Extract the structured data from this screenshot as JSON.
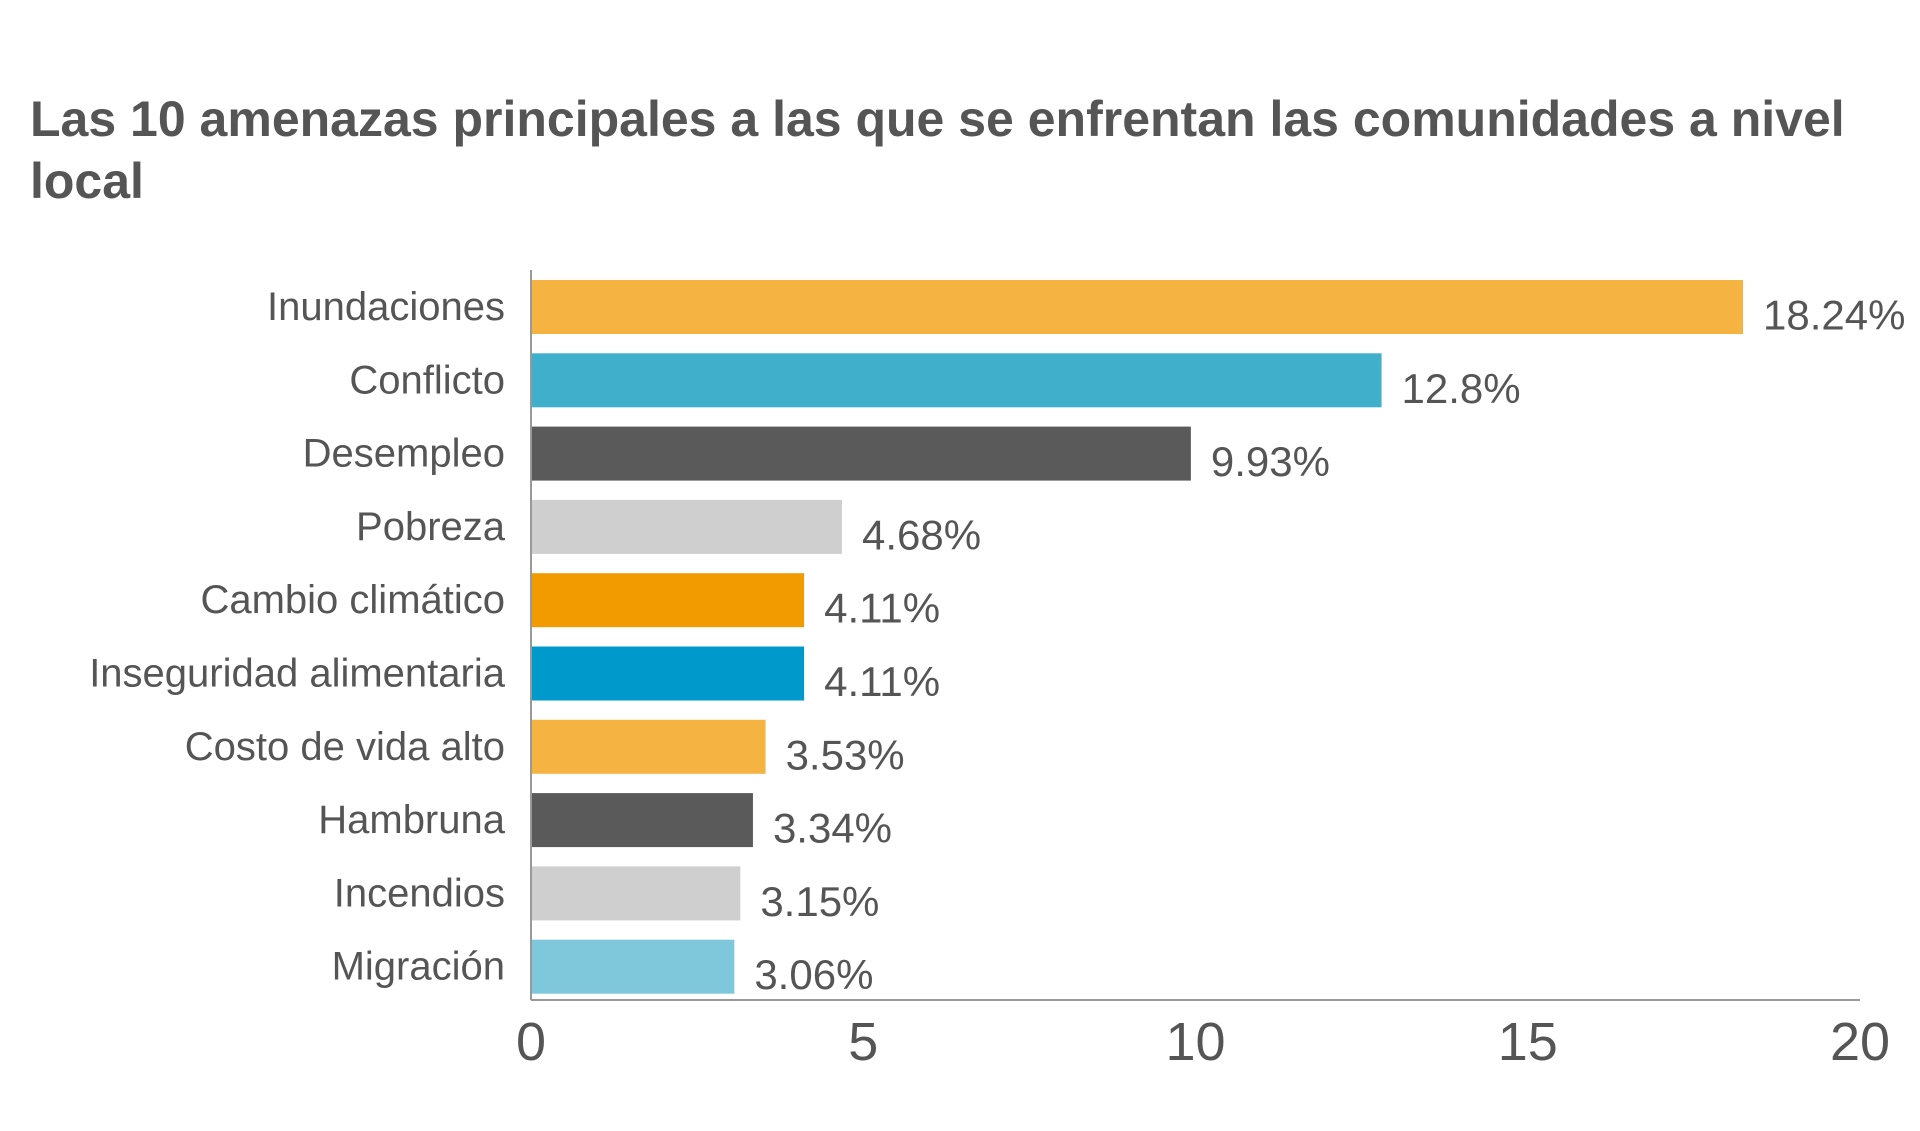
{
  "chart_data": {
    "type": "bar",
    "orientation": "horizontal",
    "title": "Las 10 amenazas principales a las que se enfrentan las comunidades a nivel local",
    "categories": [
      "Inundaciones",
      "Conflicto",
      "Desempleo",
      "Pobreza",
      "Cambio climático",
      "Inseguridad alimentaria",
      "Costo de vida alto",
      "Hambruna",
      "Incendios",
      "Migración"
    ],
    "values": [
      18.24,
      12.8,
      9.93,
      4.68,
      4.11,
      4.11,
      3.53,
      3.34,
      3.15,
      3.06
    ],
    "value_labels": [
      "18.24%",
      "12.8%",
      "9.93%",
      "4.68%",
      "4.11%",
      "4.11%",
      "3.53%",
      "3.34%",
      "3.15%",
      "3.06%"
    ],
    "colors": [
      "#F5B441",
      "#3FAFCB",
      "#5A5A5A",
      "#CFCFCF",
      "#F29B00",
      "#0099CC",
      "#F5B441",
      "#5A5A5A",
      "#CFCFCF",
      "#7FC8DC"
    ],
    "xlim": [
      0,
      20
    ],
    "xticks": [
      0,
      5,
      10,
      15,
      20
    ],
    "xticklabels": [
      "0",
      "5",
      "10",
      "15",
      "20"
    ],
    "xlabel": "",
    "ylabel": "",
    "grid": false,
    "legend": "none"
  },
  "colors": {
    "text": "#555555",
    "axis": "#999999"
  }
}
